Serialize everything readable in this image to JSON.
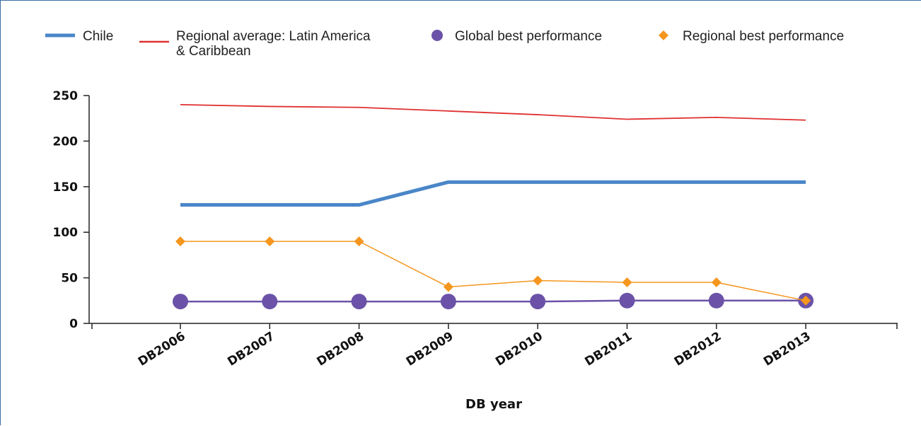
{
  "chart_data": {
    "type": "line",
    "title": "",
    "xlabel": "DB year",
    "ylabel": "",
    "categories": [
      "DB2006",
      "DB2007",
      "DB2008",
      "DB2009",
      "DB2010",
      "DB2011",
      "DB2012",
      "DB2013"
    ],
    "ylim": [
      0,
      250
    ],
    "yticks": [
      0,
      50,
      100,
      150,
      200,
      250
    ],
    "grid": false,
    "legend_position": "top",
    "series": [
      {
        "name": "Chile",
        "values": [
          130,
          130,
          130,
          155,
          155,
          155,
          155,
          155
        ],
        "color": "#4a86c8",
        "marker": "none"
      },
      {
        "name": "Regional average: Latin America & Caribbean",
        "values": [
          240,
          238,
          237,
          233,
          229,
          224,
          226,
          223
        ],
        "color": "#e03030",
        "marker": "none"
      },
      {
        "name": "Global best performance",
        "values": [
          24,
          24,
          24,
          24,
          24,
          25,
          25,
          25
        ],
        "color": "#6b52a8",
        "marker": "circle"
      },
      {
        "name": "Regional best performance",
        "values": [
          90,
          90,
          90,
          40,
          47,
          45,
          45,
          25
        ],
        "color": "#f5961e",
        "marker": "diamond"
      }
    ],
    "legend": [
      {
        "label_line1": "Chile",
        "label_line2": ""
      },
      {
        "label_line1": "Regional average: Latin America",
        "label_line2": "& Caribbean"
      },
      {
        "label_line1": "Global best performance",
        "label_line2": ""
      },
      {
        "label_line1": "Regional best performance",
        "label_line2": ""
      }
    ]
  }
}
